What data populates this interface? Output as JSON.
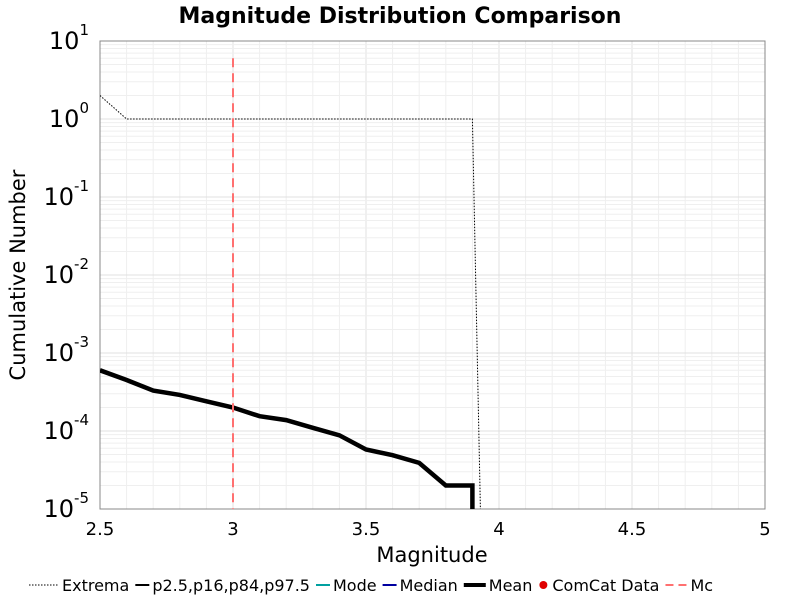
{
  "chart_data": {
    "type": "line",
    "title": "Magnitude Distribution Comparison",
    "xlabel": "Magnitude",
    "ylabel": "Cumulative Number",
    "xlim": [
      2.5,
      5
    ],
    "ylim": [
      1e-05,
      10
    ],
    "yscale": "log",
    "grid": true,
    "legend_position": "bottom",
    "x_ticks": [
      "2.5",
      "3",
      "3.5",
      "4",
      "4.5",
      "5"
    ],
    "y_ticks": [
      {
        "base": "10",
        "exp": "1"
      },
      {
        "base": "10",
        "exp": "0"
      },
      {
        "base": "10",
        "exp": "-1"
      },
      {
        "base": "10",
        "exp": "-2"
      },
      {
        "base": "10",
        "exp": "-3"
      },
      {
        "base": "10",
        "exp": "-4"
      },
      {
        "base": "10",
        "exp": "-5"
      }
    ],
    "series": [
      {
        "name": "Extrema",
        "style": "dotted",
        "color": "#000000",
        "x": [
          2.5,
          2.6,
          3.9,
          3.93
        ],
        "y": [
          2.0,
          1.0,
          1.0,
          1e-06
        ]
      },
      {
        "name": "p2.5,p16,p84,p97.5",
        "style": "solid",
        "color": "#000000",
        "x": [],
        "y": []
      },
      {
        "name": "Mode",
        "style": "solid",
        "color": "#00a0a0",
        "x": [],
        "y": []
      },
      {
        "name": "Median",
        "style": "solid",
        "color": "#0000a0",
        "x": [],
        "y": []
      },
      {
        "name": "Mean",
        "style": "thick",
        "color": "#000000",
        "x": [
          2.5,
          2.6,
          2.7,
          2.8,
          2.9,
          3.0,
          3.1,
          3.2,
          3.3,
          3.4,
          3.5,
          3.6,
          3.7,
          3.8,
          3.9,
          3.9
        ],
        "y": [
          0.0006,
          0.00045,
          0.00033,
          0.00029,
          0.00024,
          0.0002,
          0.000155,
          0.000138,
          0.00011,
          8.8e-05,
          5.8e-05,
          4.9e-05,
          3.9e-05,
          2e-05,
          2e-05,
          1e-06
        ]
      },
      {
        "name": "ComCat Data",
        "style": "points",
        "color": "#e00000",
        "x": [],
        "y": []
      },
      {
        "name": "Mc",
        "style": "dashed",
        "color": "#ff7070",
        "x": [
          3.0,
          3.0
        ],
        "y": [
          6.0,
          1e-06
        ]
      }
    ]
  }
}
